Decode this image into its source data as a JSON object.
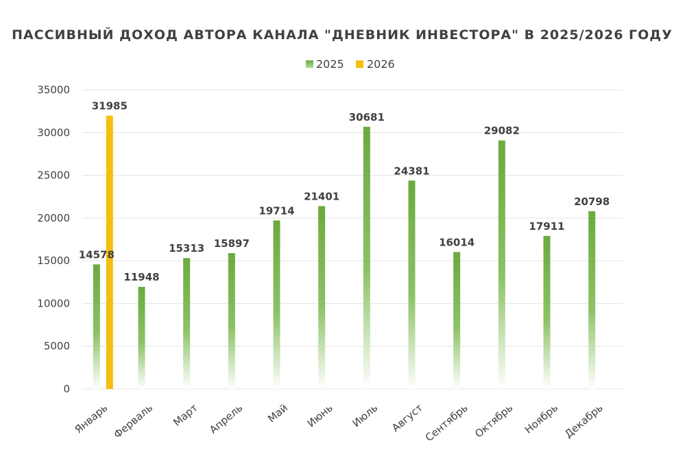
{
  "chart_data": {
    "type": "bar",
    "title": "ПАССИВНЫЙ ДОХОД АВТОРА КАНАЛА \"ДНЕВНИК ИНВЕСТОРА\" В 2025/2026 ГОДУ",
    "categories": [
      "Январь",
      "Ферваль",
      "Март",
      "Апрель",
      "Май",
      "Июнь",
      "Июль",
      "Август",
      "Сентябрь",
      "Октябрь",
      "Ноябрь",
      "Декабрь"
    ],
    "series": [
      {
        "name": "2025",
        "color": "#6aaa3f",
        "values": [
          14578,
          11948,
          15313,
          15897,
          19714,
          21401,
          30681,
          24381,
          16014,
          29082,
          17911,
          20798
        ]
      },
      {
        "name": "2026",
        "color": "#f5bf0f",
        "values": [
          31985,
          null,
          null,
          null,
          null,
          null,
          null,
          null,
          null,
          null,
          null,
          null
        ]
      }
    ],
    "ylim": [
      0,
      35000
    ],
    "yticks": [
      0,
      5000,
      10000,
      15000,
      20000,
      25000,
      30000,
      35000
    ],
    "grid": true,
    "legend_position": "top"
  }
}
